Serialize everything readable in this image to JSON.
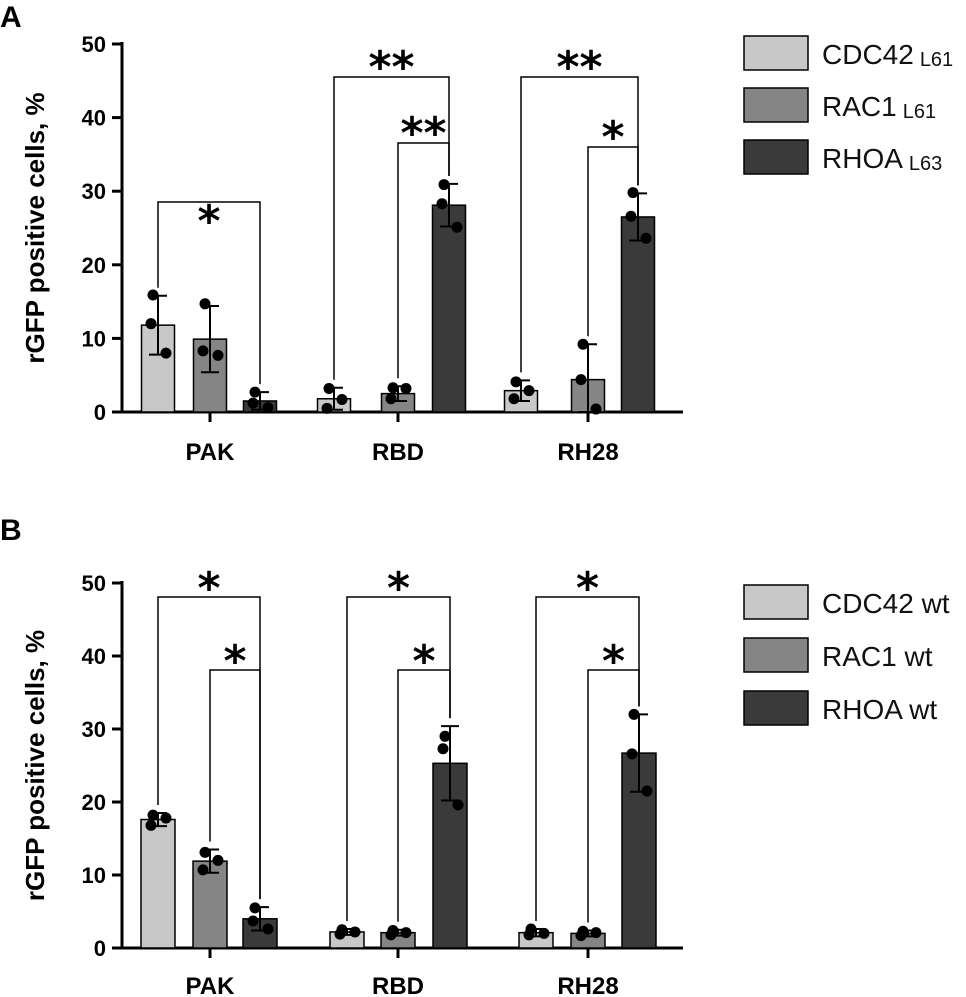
{
  "chart_data": [
    {
      "panel": "A",
      "type": "bar",
      "ylabel": "rGFP positive cells, %",
      "xlabel": "",
      "ylim": [
        0,
        50
      ],
      "yticks": [
        0,
        10,
        20,
        30,
        40,
        50
      ],
      "categories": [
        "PAK",
        "RBD",
        "RH28"
      ],
      "series": [
        {
          "name": "CDC42",
          "suffix": "L61",
          "color": "#c8c8c8",
          "values": [
            11.8,
            1.8,
            2.9
          ],
          "errors": [
            4.0,
            1.5,
            1.4
          ],
          "points": [
            [
              15.9,
              12.0,
              8.0
            ],
            [
              3.2,
              0.5,
              1.7
            ],
            [
              4.1,
              1.8,
              2.9
            ]
          ]
        },
        {
          "name": "RAC1",
          "suffix": "L61",
          "color": "#858585",
          "values": [
            9.9,
            2.5,
            4.4
          ],
          "errors": [
            4.5,
            1.0,
            4.8
          ],
          "points": [
            [
              14.7,
              8.3,
              7.7
            ],
            [
              3.3,
              1.8,
              3.2
            ],
            [
              9.2,
              4.4,
              0.4
            ]
          ]
        },
        {
          "name": "RHOA",
          "suffix": "L63",
          "color": "#3a3a3a",
          "values": [
            1.5,
            28.1,
            26.5
          ],
          "errors": [
            1.2,
            2.9,
            3.2
          ],
          "points": [
            [
              2.7,
              1.2,
              0.6
            ],
            [
              30.9,
              28.3,
              25.1
            ],
            [
              29.8,
              26.6,
              23.6
            ]
          ]
        }
      ],
      "significance": [
        {
          "group": 0,
          "from": 0,
          "to": 2,
          "label": "*"
        },
        {
          "group": 1,
          "from": 0,
          "to": 2,
          "label": "**"
        },
        {
          "group": 1,
          "from": 1,
          "to": 2,
          "label": "**"
        },
        {
          "group": 2,
          "from": 0,
          "to": 2,
          "label": "**"
        },
        {
          "group": 2,
          "from": 1,
          "to": 2,
          "label": "*"
        }
      ],
      "legend_position": "top-right"
    },
    {
      "panel": "B",
      "type": "bar",
      "ylabel": "rGFP positive cells, %",
      "xlabel": "",
      "ylim": [
        0,
        50
      ],
      "yticks": [
        0,
        10,
        20,
        30,
        40,
        50
      ],
      "categories": [
        "PAK",
        "RBD",
        "RH28"
      ],
      "series": [
        {
          "name": "CDC42 wt",
          "suffix": "",
          "color": "#c8c8c8",
          "values": [
            17.6,
            2.2,
            2.1
          ],
          "errors": [
            0.9,
            0.4,
            0.5
          ],
          "points": [
            [
              18.2,
              16.8,
              17.8
            ],
            [
              2.5,
              1.9,
              2.2
            ],
            [
              2.6,
              1.8,
              2.0
            ]
          ]
        },
        {
          "name": "RAC1 wt",
          "suffix": "",
          "color": "#858585",
          "values": [
            11.9,
            2.1,
            2.0
          ],
          "errors": [
            1.6,
            0.4,
            0.4
          ],
          "points": [
            [
              13.1,
              10.7,
              12.0
            ],
            [
              2.4,
              1.8,
              2.1
            ],
            [
              2.3,
              1.7,
              2.1
            ]
          ]
        },
        {
          "name": "RHOA wt",
          "suffix": "",
          "color": "#3a3a3a",
          "values": [
            4.0,
            25.3,
            26.7
          ],
          "errors": [
            1.6,
            5.1,
            5.3
          ],
          "points": [
            [
              5.5,
              3.7,
              2.6
            ],
            [
              29.0,
              27.3,
              19.6
            ],
            [
              32.0,
              26.6,
              21.5
            ]
          ]
        }
      ],
      "significance": [
        {
          "group": 0,
          "from": 0,
          "to": 2,
          "label": "*"
        },
        {
          "group": 0,
          "from": 1,
          "to": 2,
          "label": "*"
        },
        {
          "group": 1,
          "from": 0,
          "to": 2,
          "label": "*"
        },
        {
          "group": 1,
          "from": 1,
          "to": 2,
          "label": "*"
        },
        {
          "group": 2,
          "from": 0,
          "to": 2,
          "label": "*"
        },
        {
          "group": 2,
          "from": 1,
          "to": 2,
          "label": "*"
        }
      ],
      "legend_position": "top-right"
    }
  ]
}
